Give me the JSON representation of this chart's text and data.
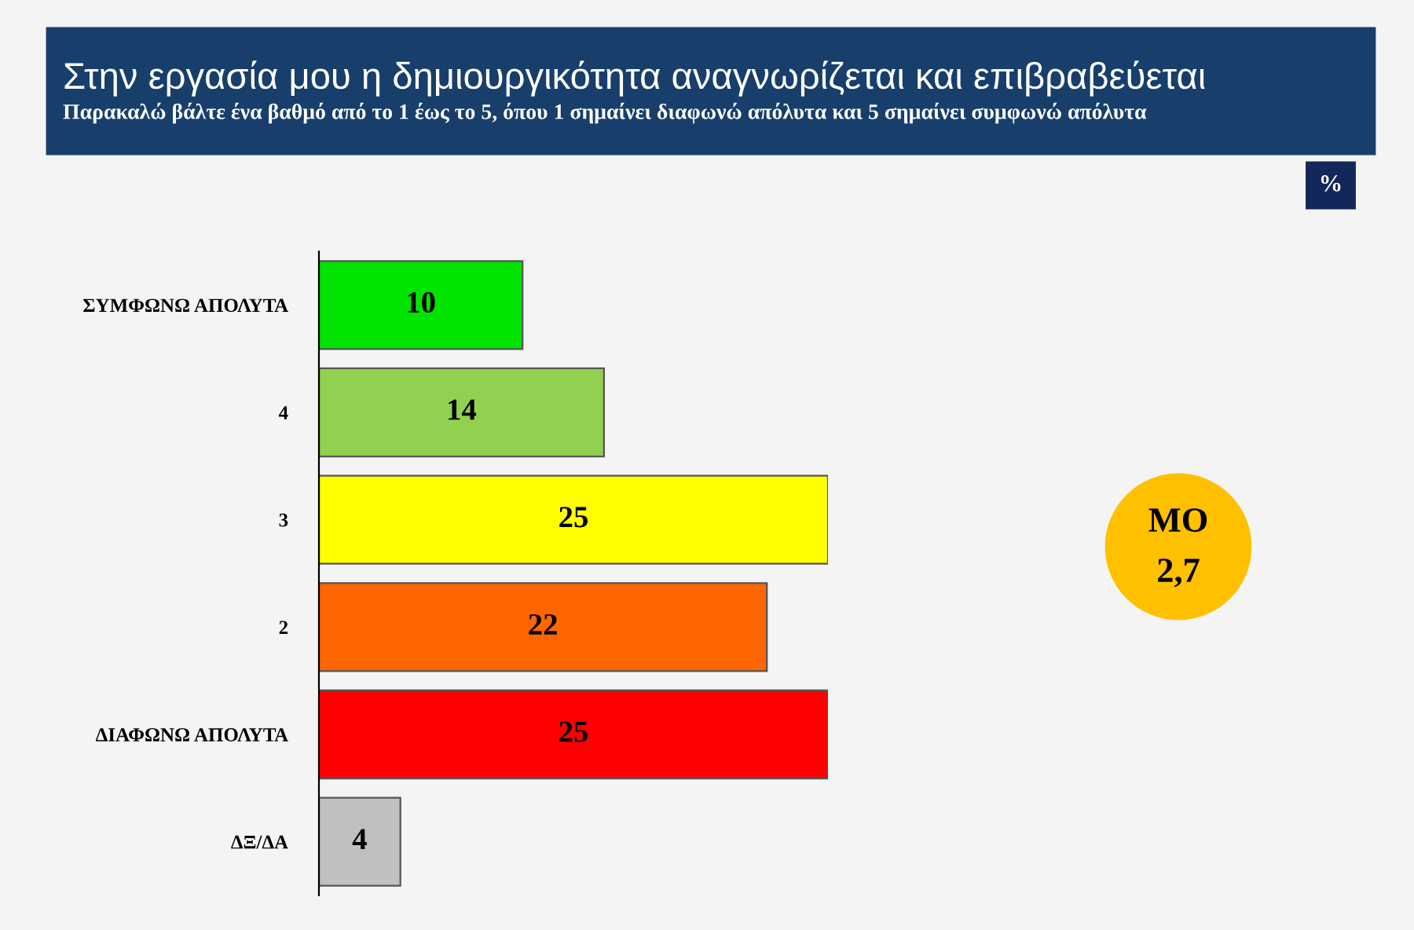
{
  "chart_data": {
    "type": "bar",
    "orientation": "horizontal",
    "title": "Στην εργασία μου η δημιουργικότητα αναγνωρίζεται και επιβραβεύεται",
    "subtitle": "Παρακαλώ βάλτε ένα βαθμό από το 1 έως το 5, όπου 1 σημαίνει διαφωνώ απόλυτα και 5 σημαίνει συμφωνώ απόλυτα",
    "categories": [
      "ΣΥΜΦΩΝΩ ΑΠΟΛΥΤΑ",
      "4",
      "3",
      "2",
      "ΔΙΑΦΩΝΩ ΑΠΟΛΥΤΑ",
      "ΔΞ/ΔΑ"
    ],
    "values": [
      10,
      14,
      25,
      22,
      25,
      4
    ],
    "colors": [
      "#00e400",
      "#92d050",
      "#ffff00",
      "#ff6600",
      "#ff0000",
      "#c0c0c0"
    ],
    "data_labels": true,
    "grid": false,
    "legend": false,
    "annotations": [
      "%",
      "ΜΟ",
      "2,7"
    ]
  }
}
